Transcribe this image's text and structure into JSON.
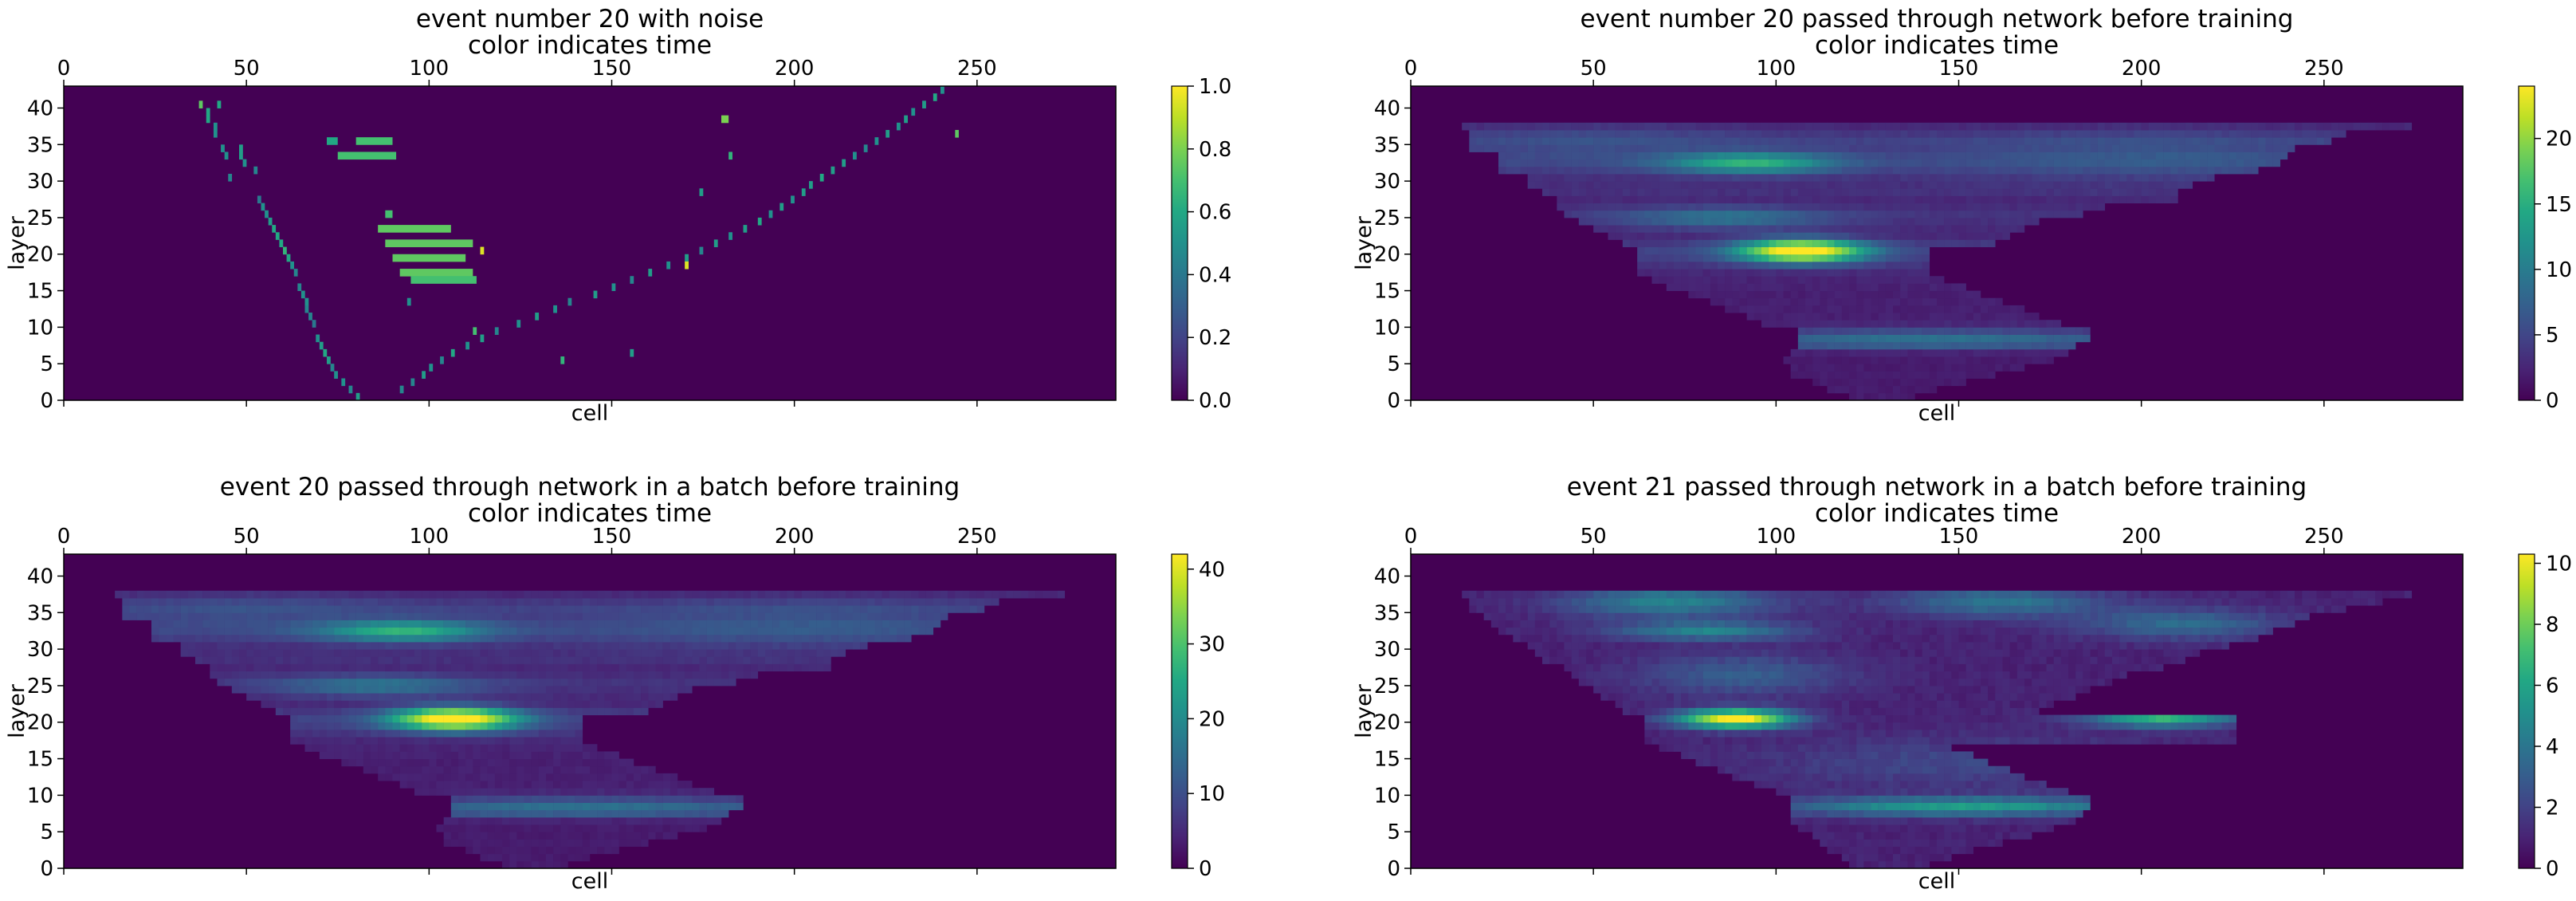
{
  "colormap": "viridis",
  "chart_data": [
    {
      "type": "heatmap",
      "title_line1": "event number 20 with noise",
      "title_line2": "color indicates time",
      "xlabel": "cell",
      "ylabel": "layer",
      "xlim": [
        0,
        288
      ],
      "ylim": [
        0,
        43
      ],
      "x_ticks": [
        0,
        50,
        100,
        150,
        200,
        250
      ],
      "y_ticks": [
        0,
        5,
        10,
        15,
        20,
        25,
        30,
        35,
        40
      ],
      "colorbar": {
        "min": 0,
        "max": 1.0,
        "ticks": [
          "0.0",
          "0.2",
          "0.4",
          "0.6",
          "0.8",
          "1.0"
        ]
      },
      "pattern": "sparse",
      "hits": [
        [
          37,
          40,
          0.75
        ],
        [
          39,
          38,
          0.6
        ],
        [
          39,
          39,
          0.6
        ],
        [
          41,
          36,
          0.5
        ],
        [
          41,
          37,
          0.5
        ],
        [
          42,
          40,
          0.6
        ],
        [
          43,
          34,
          0.5
        ],
        [
          44,
          33,
          0.5
        ],
        [
          45,
          30,
          0.45
        ],
        [
          48,
          33,
          0.55
        ],
        [
          48,
          34,
          0.55
        ],
        [
          49,
          32,
          0.5
        ],
        [
          52,
          31,
          0.45
        ],
        [
          53,
          27,
          0.4
        ],
        [
          54,
          26,
          0.5
        ],
        [
          55,
          25,
          0.5
        ],
        [
          56,
          24,
          0.55
        ],
        [
          57,
          23,
          0.6
        ],
        [
          58,
          22,
          0.6
        ],
        [
          59,
          21,
          0.6
        ],
        [
          60,
          20,
          0.65
        ],
        [
          61,
          19,
          0.6
        ],
        [
          62,
          18,
          0.5
        ],
        [
          63,
          17,
          0.45
        ],
        [
          64,
          15,
          0.45
        ],
        [
          65,
          14,
          0.5
        ],
        [
          66,
          13,
          0.5
        ],
        [
          66,
          12,
          0.45
        ],
        [
          67,
          11,
          0.45
        ],
        [
          68,
          10,
          0.4
        ],
        [
          69,
          8,
          0.5
        ],
        [
          70,
          7,
          0.55
        ],
        [
          71,
          6,
          0.6
        ],
        [
          72,
          5,
          0.55
        ],
        [
          73,
          4,
          0.45
        ],
        [
          74,
          3,
          0.5
        ],
        [
          76,
          2,
          0.5
        ],
        [
          78,
          1,
          0.45
        ],
        [
          80,
          0,
          0.55
        ],
        [
          92,
          1,
          0.45
        ],
        [
          95,
          2,
          0.45
        ],
        [
          98,
          3,
          0.55
        ],
        [
          100,
          4,
          0.5
        ],
        [
          103,
          5,
          0.45
        ],
        [
          106,
          6,
          0.6
        ],
        [
          110,
          7,
          0.5
        ],
        [
          114,
          8,
          0.55
        ],
        [
          118,
          9,
          0.45
        ],
        [
          124,
          10,
          0.5
        ],
        [
          129,
          11,
          0.55
        ],
        [
          134,
          12,
          0.5
        ],
        [
          138,
          13,
          0.45
        ],
        [
          145,
          14,
          0.55
        ],
        [
          150,
          15,
          0.5
        ],
        [
          155,
          16,
          0.45
        ],
        [
          160,
          17,
          0.55
        ],
        [
          165,
          18,
          0.5
        ],
        [
          170,
          19,
          0.55
        ],
        [
          174,
          20,
          0.45
        ],
        [
          178,
          21,
          0.55
        ],
        [
          182,
          22,
          0.5
        ],
        [
          186,
          23,
          0.55
        ],
        [
          190,
          24,
          0.6
        ],
        [
          193,
          25,
          0.5
        ],
        [
          196,
          26,
          0.55
        ],
        [
          199,
          27,
          0.5
        ],
        [
          202,
          28,
          0.55
        ],
        [
          204,
          29,
          0.55
        ],
        [
          207,
          30,
          0.6
        ],
        [
          210,
          31,
          0.55
        ],
        [
          213,
          32,
          0.55
        ],
        [
          216,
          33,
          0.5
        ],
        [
          219,
          34,
          0.45
        ],
        [
          222,
          35,
          0.5
        ],
        [
          225,
          36,
          0.55
        ],
        [
          228,
          37,
          0.5
        ],
        [
          230,
          38,
          0.55
        ],
        [
          232,
          39,
          0.5
        ],
        [
          235,
          40,
          0.55
        ],
        [
          238,
          41,
          0.6
        ],
        [
          240,
          42,
          0.5
        ],
        [
          112,
          9,
          0.7
        ],
        [
          114,
          20,
          0.95
        ],
        [
          170,
          18,
          0.95
        ],
        [
          174,
          28,
          0.55
        ],
        [
          136,
          5,
          0.65
        ],
        [
          155,
          6,
          0.55
        ],
        [
          182,
          33,
          0.65
        ],
        [
          94,
          13,
          0.5
        ]
      ],
      "bright_bars": [
        [
          75,
          33,
          16,
          0.7
        ],
        [
          80,
          35,
          10,
          0.7
        ],
        [
          72,
          35,
          3,
          0.6
        ],
        [
          86,
          23,
          20,
          0.75
        ],
        [
          88,
          21,
          24,
          0.75
        ],
        [
          90,
          19,
          20,
          0.75
        ],
        [
          92,
          17,
          20,
          0.75
        ],
        [
          95,
          16,
          18,
          0.7
        ],
        [
          88,
          25,
          2,
          0.7
        ],
        [
          180,
          38,
          2,
          0.8
        ],
        [
          244,
          36,
          1,
          0.75
        ]
      ]
    },
    {
      "type": "heatmap",
      "title_line1": "event number 20 passed through network before training",
      "title_line2": "color indicates time",
      "xlabel": "cell",
      "ylabel": "layer",
      "xlim": [
        0,
        288
      ],
      "ylim": [
        0,
        43
      ],
      "x_ticks": [
        0,
        50,
        100,
        150,
        200,
        250
      ],
      "y_ticks": [
        0,
        5,
        10,
        15,
        20,
        25,
        30,
        35,
        40
      ],
      "colorbar": {
        "min": 0,
        "max": 24,
        "ticks": [
          "0",
          "5",
          "10",
          "15",
          "20"
        ]
      },
      "pattern": "batch1",
      "peak_value": 24,
      "peak_at": [
        105,
        20
      ]
    },
    {
      "type": "heatmap",
      "title_line1": "event 20 passed through network in a batch before training",
      "title_line2": "color indicates time",
      "xlabel": "cell",
      "ylabel": "layer",
      "xlim": [
        0,
        288
      ],
      "ylim": [
        0,
        43
      ],
      "x_ticks": [
        0,
        50,
        100,
        150,
        200,
        250
      ],
      "y_ticks": [
        0,
        5,
        10,
        15,
        20,
        25,
        30,
        35,
        40
      ],
      "colorbar": {
        "min": 0,
        "max": 42,
        "ticks": [
          "0",
          "10",
          "20",
          "30",
          "40"
        ]
      },
      "pattern": "batch1",
      "peak_value": 42,
      "peak_at": [
        105,
        20
      ]
    },
    {
      "type": "heatmap",
      "title_line1": "event 21 passed through network in a batch before training",
      "title_line2": "color indicates time",
      "xlabel": "cell",
      "ylabel": "layer",
      "xlim": [
        0,
        288
      ],
      "ylim": [
        0,
        43
      ],
      "x_ticks": [
        0,
        50,
        100,
        150,
        200,
        250
      ],
      "y_ticks": [
        0,
        5,
        10,
        15,
        20,
        25,
        30,
        35,
        40
      ],
      "colorbar": {
        "min": 0,
        "max": 10.3,
        "ticks": [
          "0",
          "2",
          "4",
          "6",
          "8",
          "10"
        ]
      },
      "pattern": "batch2",
      "peak_value": 10.3,
      "peak_at": [
        88,
        20
      ]
    }
  ]
}
